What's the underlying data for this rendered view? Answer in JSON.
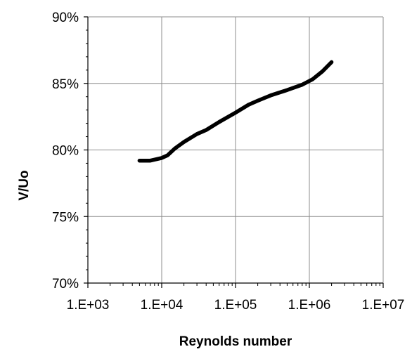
{
  "chart_data": {
    "type": "line",
    "title": "",
    "xlabel": "Reynolds number",
    "ylabel": "V/Uo",
    "x_scale": "log",
    "xlim": [
      1000,
      10000000
    ],
    "ylim": [
      0.7,
      0.9
    ],
    "grid": true,
    "x_ticks": [
      1000,
      10000,
      100000,
      1000000,
      10000000
    ],
    "x_tick_labels": [
      "1.E+03",
      "1.E+04",
      "1.E+05",
      "1.E+06",
      "1.E+07"
    ],
    "y_ticks": [
      0.7,
      0.75,
      0.8,
      0.85,
      0.9
    ],
    "y_tick_labels": [
      "70%",
      "75%",
      "80%",
      "85%",
      "90%"
    ],
    "series": [
      {
        "color": "#000000",
        "x": [
          5000,
          7000,
          10000,
          12000,
          15000,
          20000,
          30000,
          40000,
          60000,
          100000,
          150000,
          200000,
          300000,
          500000,
          800000,
          1100000,
          1500000,
          2000000
        ],
        "y": [
          0.792,
          0.792,
          0.794,
          0.796,
          0.801,
          0.806,
          0.812,
          0.815,
          0.821,
          0.828,
          0.834,
          0.837,
          0.841,
          0.845,
          0.849,
          0.853,
          0.859,
          0.866
        ]
      }
    ]
  }
}
